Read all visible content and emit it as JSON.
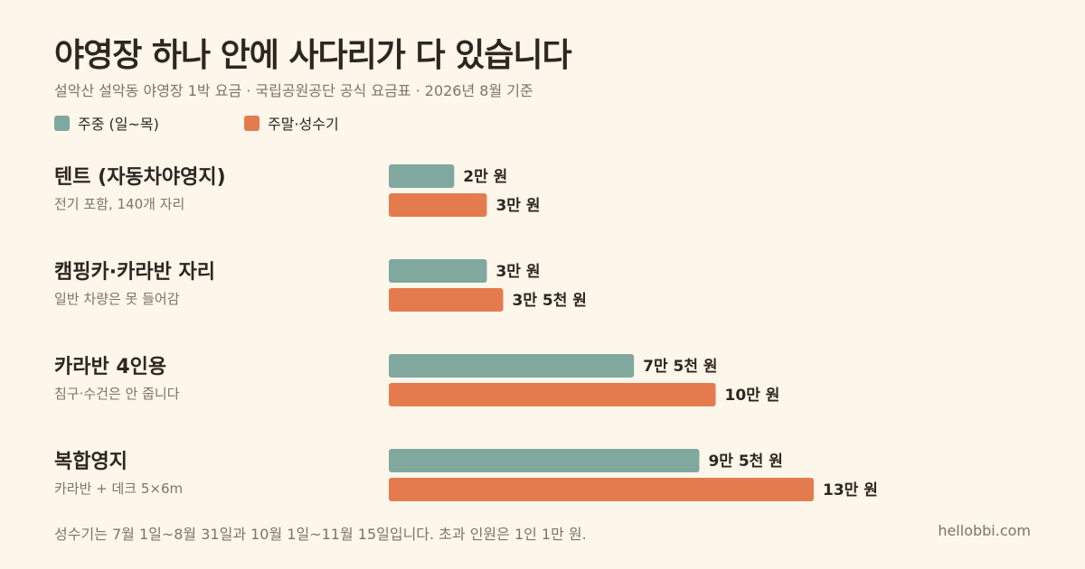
{
  "header": {
    "title": "야영장 하나 안에 사다리가 다 있습니다",
    "subtitle": "설악산 설악동 야영장 1박 요금 · 국립공원공단 공식 요금표 · 2026년 8월 기준"
  },
  "legend": {
    "weekday": "주중 (일~목)",
    "peak": "주말·성수기"
  },
  "colors": {
    "weekday": "#80A89E",
    "peak": "#E47B4F",
    "background": "#FDF6EA",
    "text": "#2E2620",
    "muted": "#7D736A"
  },
  "chart_data": {
    "type": "bar",
    "orientation": "horizontal",
    "title": "야영장 하나 안에 사다리가 다 있습니다",
    "subtitle": "설악산 설악동 야영장 1박 요금 · 국립공원공단 공식 요금표 · 2026년 8월 기준",
    "categories": [
      {
        "name": "텐트 (자동차야영지)",
        "note": "전기 포함, 140개 자리"
      },
      {
        "name": "캠핑카·카라반 자리",
        "note": "일반 차량은 못 들어감"
      },
      {
        "name": "카라반 4인용",
        "note": "침구·수건은 안 줍니다"
      },
      {
        "name": "복합영지",
        "note": "카라반 + 데크 5×6m"
      }
    ],
    "series": [
      {
        "name": "주중 (일~목)",
        "values": [
          20000,
          30000,
          75000,
          95000
        ],
        "labels": [
          "2만 원",
          "3만 원",
          "7만 5천 원",
          "9만 5천 원"
        ]
      },
      {
        "name": "주말·성수기",
        "values": [
          30000,
          35000,
          100000,
          130000
        ],
        "labels": [
          "3만 원",
          "3만 5천 원",
          "10만 원",
          "13만 원"
        ]
      }
    ],
    "xlim": [
      0,
      130000
    ],
    "grid": false,
    "legend_position": "top-left"
  },
  "footer": {
    "note": "성수기는 7월 1일~8월 31일과 10월 1일~11월 15일입니다. 초과 인원은 1인 1만 원.",
    "site": "hellobbi.com"
  }
}
